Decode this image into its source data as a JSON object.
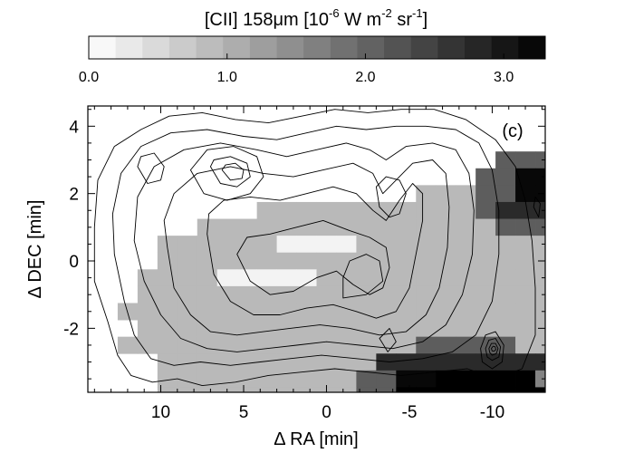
{
  "chart_data": {
    "type": "heatmap",
    "title": "[CII] 158μm [10⁻⁶ W m⁻² sr⁻¹]",
    "colorbar": {
      "label_main": "[CII] 158μm [10",
      "label_exp1": "-6",
      "label_mid": " W m",
      "label_exp2": "-2",
      "label_sr": " sr",
      "label_exp3": "-1",
      "label_end": "]",
      "range": [
        0.0,
        3.3
      ],
      "steps": 17,
      "ticks": [
        {
          "value": 0.0,
          "label": "0.0"
        },
        {
          "value": 1.0,
          "label": "1.0"
        },
        {
          "value": 2.0,
          "label": "2.0"
        },
        {
          "value": 3.0,
          "label": "3.0"
        }
      ],
      "colormap": "white-to-black"
    },
    "panel_label": "(c)",
    "xlabel": "Δ RA [min]",
    "ylabel": "Δ DEC [min]",
    "xlim": [
      14.4,
      -13.2
    ],
    "ylim": [
      -3.9,
      4.6
    ],
    "xticks": [
      {
        "value": 10,
        "label": "10"
      },
      {
        "value": 5,
        "label": "5"
      },
      {
        "value": 0,
        "label": "0"
      },
      {
        "value": -5,
        "label": "-5"
      },
      {
        "value": -10,
        "label": "-10"
      }
    ],
    "yticks": [
      {
        "value": 4,
        "label": "4"
      },
      {
        "value": 2,
        "label": "2"
      },
      {
        "value": 0,
        "label": "0"
      },
      {
        "value": -2,
        "label": "-2"
      }
    ],
    "grid": false,
    "pixel_size": {
      "ra": 1.2,
      "dec": 0.5
    },
    "map_ra_origin": 13.8,
    "map_dec_origin": 4.25,
    "map_rows": [
      "..............................000000....",
      "..............................000000....",
      "....................3333333300000000....",
      "...................3377755555333.000....",
      "................111337775553331.0000....",
      "........11111111111355554443111.0000....",
      ".....11111111111111133333311110000......",
      "...1111110000111111111111111100000......",
      "...111111111111111111111111111000.......",
      "..11110000011111111111111111100000......",
      "..111111111111111111111111111000........",
      ".1111111111111111111111111100...........",
      "..1111111111111111111111111.............",
      ".11111111111111133333111111..........",
      "...111111111115555555551..3.............",
      "...11111111113377999992.................",
      "...11111111113399999999.................",
      "....1111111113377777...................",
      "....1111111111333.......................",
      "....11111111111........................."
    ],
    "map_levels": [
      0.15,
      0.9,
      1.6,
      2.1,
      2.4,
      2.75,
      3.0,
      3.2,
      3.4
    ],
    "contours": [
      [
        [
          14.0,
          -0.6
        ],
        [
          13.2,
          -1.8
        ],
        [
          12.6,
          -2.8
        ],
        [
          11.8,
          -3.4
        ],
        [
          10.5,
          -3.6
        ],
        [
          9.0,
          -3.5
        ],
        [
          7.5,
          -3.7
        ],
        [
          5.5,
          -3.6
        ],
        [
          3.5,
          -3.4
        ],
        [
          1.5,
          -3.3
        ],
        [
          -0.5,
          -3.2
        ],
        [
          -2.5,
          -3.3
        ],
        [
          -4.5,
          -3.4
        ],
        [
          -6.5,
          -3.3
        ],
        [
          -8.5,
          -3.2
        ],
        [
          -10.2,
          -3.5
        ],
        [
          -11.8,
          -3.2
        ],
        [
          -12.6,
          -2.2
        ],
        [
          -12.6,
          -0.8
        ],
        [
          -12.4,
          0.6
        ],
        [
          -12.0,
          1.8
        ],
        [
          -11.4,
          2.8
        ],
        [
          -10.2,
          3.6
        ],
        [
          -8.4,
          4.2
        ],
        [
          -6.5,
          4.5
        ],
        [
          -4.5,
          4.5
        ],
        [
          -2.5,
          4.4
        ],
        [
          -0.5,
          4.5
        ],
        [
          1.5,
          4.3
        ],
        [
          3.5,
          4.1
        ],
        [
          5.5,
          4.2
        ],
        [
          7.5,
          4.4
        ],
        [
          9.5,
          4.3
        ],
        [
          11.2,
          3.9
        ],
        [
          12.8,
          3.4
        ],
        [
          13.8,
          2.4
        ],
        [
          14.0,
          1.0
        ],
        [
          14.0,
          -0.6
        ]
      ],
      [
        [
          12.8,
          0.2
        ],
        [
          12.2,
          -1.2
        ],
        [
          11.6,
          -2.2
        ],
        [
          10.6,
          -2.9
        ],
        [
          9.2,
          -3.1
        ],
        [
          7.6,
          -3.0
        ],
        [
          5.8,
          -3.1
        ],
        [
          4.0,
          -3.0
        ],
        [
          2.2,
          -2.9
        ],
        [
          0.3,
          -2.8
        ],
        [
          -1.8,
          -2.9
        ],
        [
          -3.8,
          -3.0
        ],
        [
          -5.8,
          -2.9
        ],
        [
          -7.6,
          -2.7
        ],
        [
          -9.0,
          -2.2
        ],
        [
          -10.0,
          -1.2
        ],
        [
          -10.4,
          0.2
        ],
        [
          -10.4,
          1.5
        ],
        [
          -10.0,
          2.7
        ],
        [
          -9.2,
          3.5
        ],
        [
          -7.8,
          3.9
        ],
        [
          -6.0,
          4.0
        ],
        [
          -4.2,
          4.0
        ],
        [
          -2.4,
          3.9
        ],
        [
          -0.6,
          4.0
        ],
        [
          1.2,
          3.8
        ],
        [
          3.0,
          3.6
        ],
        [
          5.0,
          3.7
        ],
        [
          7.2,
          3.9
        ],
        [
          9.4,
          3.8
        ],
        [
          11.2,
          3.4
        ],
        [
          12.4,
          2.6
        ],
        [
          12.9,
          1.4
        ],
        [
          12.8,
          0.2
        ]
      ],
      [
        [
          11.6,
          0.6
        ],
        [
          11.0,
          -0.6
        ],
        [
          10.0,
          -1.6
        ],
        [
          8.8,
          -2.3
        ],
        [
          7.2,
          -2.6
        ],
        [
          5.4,
          -2.7
        ],
        [
          3.6,
          -2.6
        ],
        [
          1.8,
          -2.5
        ],
        [
          0.0,
          -2.4
        ],
        [
          -2.0,
          -2.5
        ],
        [
          -4.0,
          -2.6
        ],
        [
          -5.8,
          -2.4
        ],
        [
          -7.2,
          -1.9
        ],
        [
          -8.2,
          -1.0
        ],
        [
          -8.8,
          0.2
        ],
        [
          -8.9,
          1.5
        ],
        [
          -8.6,
          2.6
        ],
        [
          -7.8,
          3.3
        ],
        [
          -6.4,
          3.5
        ],
        [
          -4.8,
          3.4
        ],
        [
          -3.6,
          3.0
        ],
        [
          -2.6,
          3.3
        ],
        [
          -1.2,
          3.5
        ],
        [
          0.6,
          3.3
        ],
        [
          2.4,
          3.1
        ],
        [
          4.2,
          3.3
        ],
        [
          6.4,
          3.5
        ],
        [
          8.6,
          3.3
        ],
        [
          10.4,
          2.8
        ],
        [
          11.4,
          1.9
        ],
        [
          11.6,
          0.6
        ]
      ],
      [
        [
          9.6,
          0.4
        ],
        [
          9.2,
          -0.8
        ],
        [
          8.2,
          -1.6
        ],
        [
          7.0,
          -2.1
        ],
        [
          5.4,
          -2.2
        ],
        [
          3.8,
          -2.1
        ],
        [
          2.2,
          -2.0
        ],
        [
          0.4,
          -1.9
        ],
        [
          -1.4,
          -2.0
        ],
        [
          -3.2,
          -2.2
        ],
        [
          -4.8,
          -2.1
        ],
        [
          -6.0,
          -1.6
        ],
        [
          -6.8,
          -0.8
        ],
        [
          -7.3,
          0.4
        ],
        [
          -7.4,
          1.6
        ],
        [
          -7.2,
          2.6
        ],
        [
          -6.4,
          3.0
        ],
        [
          -5.2,
          2.9
        ],
        [
          -4.2,
          2.4
        ],
        [
          -3.4,
          2.0
        ],
        [
          -2.8,
          2.6
        ],
        [
          -1.6,
          2.9
        ],
        [
          0.2,
          2.7
        ],
        [
          2.0,
          2.5
        ],
        [
          3.8,
          2.6
        ],
        [
          5.8,
          2.8
        ],
        [
          7.8,
          2.6
        ],
        [
          9.2,
          2.0
        ],
        [
          9.8,
          1.2
        ],
        [
          9.6,
          0.4
        ]
      ],
      [
        [
          7.2,
          0.8
        ],
        [
          6.8,
          -0.4
        ],
        [
          5.8,
          -1.2
        ],
        [
          4.4,
          -1.6
        ],
        [
          2.8,
          -1.6
        ],
        [
          1.2,
          -1.4
        ],
        [
          -0.4,
          -1.3
        ],
        [
          -1.8,
          -1.5
        ],
        [
          -3.0,
          -1.7
        ],
        [
          -4.2,
          -1.5
        ],
        [
          -5.0,
          -0.8
        ],
        [
          -5.4,
          0.2
        ],
        [
          -5.8,
          1.2
        ],
        [
          -5.8,
          2.0
        ],
        [
          -5.2,
          2.3
        ],
        [
          -4.4,
          1.8
        ],
        [
          -3.6,
          1.2
        ],
        [
          -2.8,
          1.5
        ],
        [
          -1.8,
          2.0
        ],
        [
          -0.4,
          2.2
        ],
        [
          1.2,
          2.0
        ],
        [
          2.8,
          1.8
        ],
        [
          4.6,
          1.9
        ],
        [
          6.2,
          1.8
        ],
        [
          7.1,
          1.4
        ],
        [
          7.2,
          0.8
        ]
      ],
      [
        [
          5.4,
          0.2
        ],
        [
          4.6,
          -0.6
        ],
        [
          3.4,
          -1.0
        ],
        [
          2.0,
          -0.9
        ],
        [
          0.6,
          -0.5
        ],
        [
          -0.6,
          -0.3
        ],
        [
          -1.6,
          -0.7
        ],
        [
          -2.6,
          -1.0
        ],
        [
          -3.4,
          -0.8
        ],
        [
          -3.8,
          -0.2
        ],
        [
          -3.6,
          0.4
        ],
        [
          -2.6,
          0.7
        ],
        [
          -1.4,
          0.9
        ],
        [
          0.2,
          1.2
        ],
        [
          1.8,
          1.0
        ],
        [
          3.4,
          0.8
        ],
        [
          4.8,
          0.7
        ],
        [
          5.4,
          0.2
        ]
      ],
      [
        [
          8.2,
          2.7
        ],
        [
          7.4,
          2.0
        ],
        [
          6.0,
          1.8
        ],
        [
          4.6,
          2.0
        ],
        [
          3.8,
          2.5
        ],
        [
          4.2,
          3.1
        ],
        [
          5.6,
          3.4
        ],
        [
          7.2,
          3.3
        ],
        [
          8.2,
          2.7
        ]
      ],
      [
        [
          7.0,
          2.8
        ],
        [
          6.4,
          2.3
        ],
        [
          5.4,
          2.2
        ],
        [
          4.6,
          2.5
        ],
        [
          4.8,
          2.9
        ],
        [
          5.8,
          3.1
        ],
        [
          6.8,
          3.0
        ],
        [
          7.0,
          2.8
        ]
      ],
      [
        [
          6.3,
          2.7
        ],
        [
          5.8,
          2.4
        ],
        [
          5.1,
          2.45
        ],
        [
          5.0,
          2.7
        ],
        [
          5.5,
          2.9
        ],
        [
          6.1,
          2.85
        ],
        [
          6.3,
          2.7
        ]
      ],
      [
        [
          11.4,
          2.8
        ],
        [
          10.8,
          2.3
        ],
        [
          10.0,
          2.4
        ],
        [
          9.8,
          2.8
        ],
        [
          10.4,
          3.2
        ],
        [
          11.2,
          3.1
        ],
        [
          11.4,
          2.8
        ]
      ],
      [
        [
          -1.0,
          -1.1
        ],
        [
          -2.4,
          -1.0
        ],
        [
          -3.4,
          -0.6
        ],
        [
          -3.2,
          0.0
        ],
        [
          -2.4,
          0.2
        ],
        [
          -1.4,
          0.0
        ],
        [
          -1.0,
          -0.5
        ],
        [
          -1.0,
          -1.1
        ]
      ],
      [
        [
          -4.8,
          2.0
        ],
        [
          -4.4,
          1.4
        ],
        [
          -3.8,
          1.3
        ],
        [
          -3.2,
          1.6
        ],
        [
          -3.0,
          2.2
        ],
        [
          -3.6,
          2.5
        ],
        [
          -4.4,
          2.4
        ],
        [
          -4.8,
          2.0
        ]
      ],
      [
        [
          -9.3,
          -2.6
        ],
        [
          -9.6,
          -2.2
        ],
        [
          -10.2,
          -2.1
        ],
        [
          -10.7,
          -2.5
        ],
        [
          -10.6,
          -3.0
        ],
        [
          -10.0,
          -3.2
        ],
        [
          -9.4,
          -3.0
        ],
        [
          -9.3,
          -2.6
        ]
      ],
      [
        [
          -9.6,
          -2.6
        ],
        [
          -9.8,
          -2.35
        ],
        [
          -10.2,
          -2.3
        ],
        [
          -10.5,
          -2.55
        ],
        [
          -10.4,
          -2.85
        ],
        [
          -10.0,
          -2.95
        ],
        [
          -9.7,
          -2.85
        ],
        [
          -9.6,
          -2.6
        ]
      ],
      [
        [
          -9.8,
          -2.6
        ],
        [
          -9.95,
          -2.45
        ],
        [
          -10.2,
          -2.45
        ],
        [
          -10.35,
          -2.6
        ],
        [
          -10.25,
          -2.75
        ],
        [
          -10.0,
          -2.8
        ],
        [
          -9.85,
          -2.72
        ],
        [
          -9.8,
          -2.6
        ]
      ],
      [
        [
          -9.95,
          -2.6
        ],
        [
          -10.05,
          -2.53
        ],
        [
          -10.18,
          -2.55
        ],
        [
          -10.22,
          -2.63
        ],
        [
          -10.12,
          -2.68
        ],
        [
          -10.0,
          -2.67
        ],
        [
          -9.95,
          -2.6
        ]
      ],
      [
        [
          -12.5,
          1.6
        ],
        [
          -12.8,
          1.3
        ],
        [
          -12.9,
          1.7
        ],
        [
          -12.6,
          1.9
        ],
        [
          -12.5,
          1.6
        ]
      ],
      [
        [
          -3.2,
          -2.3
        ],
        [
          -3.8,
          -2.0
        ],
        [
          -4.2,
          -2.4
        ],
        [
          -3.7,
          -2.7
        ],
        [
          -3.2,
          -2.3
        ]
      ]
    ]
  }
}
